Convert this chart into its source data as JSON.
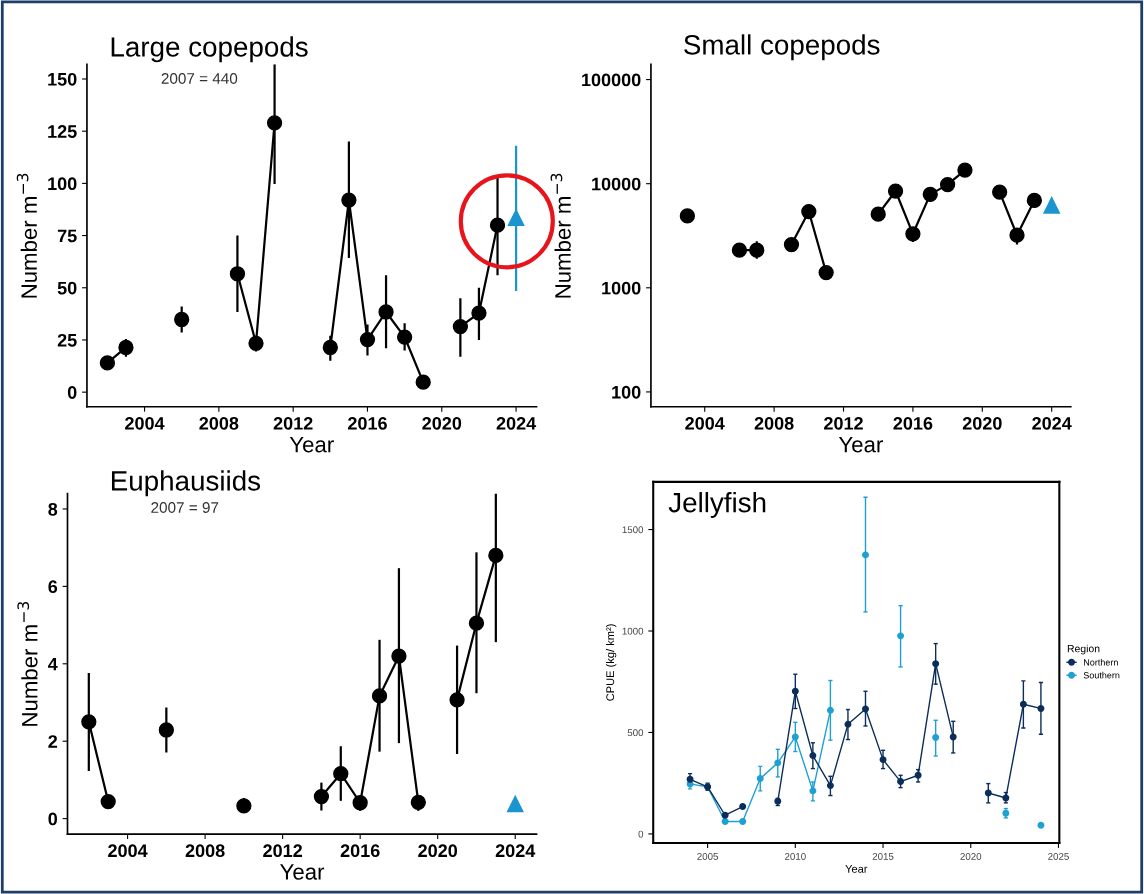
{
  "chart_data": [
    {
      "type": "line",
      "title": "Large copepods",
      "annotations": [
        "2007 = 440"
      ],
      "xlabel": "Year",
      "ylabel": "Number m$^{−3}$",
      "xlim": [
        2000.9,
        2025.1
      ],
      "ylim": [
        -7,
        157
      ],
      "xticks": [
        2004,
        2008,
        2012,
        2016,
        2020,
        2024
      ],
      "yticks": [
        0,
        25,
        50,
        75,
        100,
        125,
        150
      ],
      "marker": "circle",
      "line_style": "solid",
      "x": [
        2002,
        2003,
        2004,
        2005,
        2006,
        2007,
        2008,
        2009,
        2010,
        2011,
        2012,
        2013,
        2014,
        2015,
        2016,
        2017,
        2018,
        2019,
        2020,
        2021,
        2022,
        2023,
        2024
      ],
      "series": [
        {
          "color": "#000000",
          "values": [
            14,
            21.4,
            null,
            null,
            34.8,
            null,
            null,
            56.7,
            23.4,
            129,
            null,
            null,
            21.4,
            92,
            25.2,
            38.4,
            26.4,
            4.8,
            null,
            31.4,
            37.9,
            80,
            null
          ],
          "errors": [
            null,
            [
              17,
              25.5
            ],
            null,
            null,
            [
              28.6,
              41
            ],
            null,
            null,
            [
              38.4,
              75
            ],
            [
              19.5,
              27
            ],
            [
              99.7,
              157
            ],
            null,
            null,
            [
              15,
              27
            ],
            [
              64.3,
              120
            ],
            [
              17.6,
              32.4
            ],
            [
              21,
              56
            ],
            [
              20,
              33
            ],
            null,
            null,
            [
              17,
              45
            ],
            [
              25,
              50
            ],
            [
              56,
              104
            ],
            null
          ]
        },
        {
          "type": "scatter",
          "marker": "triangle",
          "color": "#1b95d0",
          "values": [
            null,
            null,
            null,
            null,
            null,
            null,
            null,
            null,
            null,
            null,
            null,
            null,
            null,
            null,
            null,
            null,
            null,
            null,
            null,
            null,
            null,
            null,
            83.6
          ],
          "errors": [
            null,
            null,
            null,
            null,
            null,
            null,
            null,
            null,
            null,
            null,
            null,
            null,
            null,
            null,
            null,
            null,
            null,
            null,
            null,
            null,
            null,
            null,
            [
              48.4,
              118
            ]
          ]
        }
      ]
    },
    {
      "type": "line",
      "title": "Small copepods",
      "xlabel": "Year",
      "ylabel": "Number m$^{−3}$",
      "log": "y",
      "xlim": [
        2000.9,
        2025.1
      ],
      "ylim": [
        72,
        140000
      ],
      "xticks": [
        2004,
        2008,
        2012,
        2016,
        2020,
        2024
      ],
      "yticks": [
        100,
        1000,
        10000,
        100000
      ],
      "marker": "circle",
      "line_style": "solid",
      "x": [
        2003,
        2004,
        2005,
        2006,
        2007,
        2008,
        2009,
        2010,
        2011,
        2012,
        2013,
        2014,
        2015,
        2016,
        2017,
        2018,
        2019,
        2020,
        2021,
        2022,
        2023,
        2024
      ],
      "series": [
        {
          "color": "#000000",
          "values": [
            4900,
            null,
            null,
            2300,
            2300,
            null,
            2600,
            5400,
            1400,
            null,
            null,
            5100,
            8500,
            3300,
            7900,
            9800,
            13500,
            null,
            8300,
            3200,
            6900,
            null
          ],
          "errors": [
            null,
            null,
            null,
            null,
            [
              1900,
              2800
            ],
            null,
            [
              2300,
              2950
            ],
            null,
            null,
            null,
            null,
            null,
            null,
            [
              2750,
              3700
            ],
            null,
            null,
            null,
            null,
            null,
            [
              2600,
              3700
            ],
            null,
            null
          ]
        },
        {
          "type": "scatter",
          "marker": "triangle",
          "color": "#1b95d0",
          "values": [
            null,
            null,
            null,
            null,
            null,
            null,
            null,
            null,
            null,
            null,
            null,
            null,
            null,
            null,
            null,
            null,
            null,
            null,
            null,
            null,
            null,
            6200
          ]
        }
      ]
    },
    {
      "type": "line",
      "title": "Euphausiids",
      "annotations": [
        "2007 = 97"
      ],
      "xlabel": "Year",
      "ylabel": "Number m$^{−3}$",
      "xlim": [
        2000.9,
        2025.1
      ],
      "ylim": [
        -0.4,
        8.4
      ],
      "xticks": [
        2004,
        2008,
        2012,
        2016,
        2020,
        2024
      ],
      "yticks": [
        0,
        2,
        4,
        6,
        8
      ],
      "marker": "circle",
      "line_style": "solid",
      "x": [
        2002,
        2003,
        2004,
        2005,
        2006,
        2007,
        2008,
        2009,
        2010,
        2011,
        2012,
        2013,
        2014,
        2015,
        2016,
        2017,
        2018,
        2019,
        2020,
        2021,
        2022,
        2023,
        2024
      ],
      "series": [
        {
          "color": "#000000",
          "values": [
            2.5,
            0.44,
            null,
            null,
            2.29,
            null,
            null,
            null,
            0.33,
            null,
            null,
            null,
            0.57,
            1.16,
            0.41,
            3.17,
            4.2,
            0.42,
            null,
            3.07,
            5.05,
            6.8,
            null
          ],
          "errors": [
            [
              1.23,
              3.76
            ],
            null,
            null,
            null,
            [
              1.71,
              2.87
            ],
            null,
            null,
            null,
            [
              0.15,
              0.53
            ],
            null,
            null,
            null,
            [
              0.21,
              0.93
            ],
            [
              0.46,
              1.87
            ],
            [
              0.2,
              0.6
            ],
            [
              1.73,
              4.62
            ],
            [
              1.95,
              6.47
            ],
            [
              0.2,
              0.6
            ],
            null,
            [
              1.67,
              4.47
            ],
            [
              3.24,
              6.88
            ],
            [
              4.56,
              8.4
            ],
            null
          ]
        },
        {
          "type": "scatter",
          "marker": "triangle",
          "color": "#1b95d0",
          "values": [
            null,
            null,
            null,
            null,
            null,
            null,
            null,
            null,
            null,
            null,
            null,
            null,
            null,
            null,
            null,
            null,
            null,
            null,
            null,
            null,
            null,
            null,
            0.38
          ]
        }
      ]
    },
    {
      "type": "line",
      "title": "Jellyfish",
      "xlabel": "Year",
      "ylabel": "CPUE (kg/ km²)",
      "legend_title": "Region",
      "legend": "right",
      "xlim": [
        2001.9,
        2025.05
      ],
      "ylim": [
        -45,
        1735
      ],
      "xticks": [
        2005,
        2010,
        2015,
        2020,
        2025
      ],
      "yticks": [
        0,
        500,
        1000,
        1500
      ],
      "marker": "circle",
      "line_style": "solid",
      "x": [
        2004,
        2005,
        2006,
        2007,
        2008,
        2009,
        2010,
        2011,
        2012,
        2013,
        2014,
        2015,
        2016,
        2017,
        2018,
        2019,
        2020,
        2021,
        2022,
        2023,
        2024
      ],
      "series": [
        {
          "name": "Northern",
          "color": "#0b2d5a",
          "values": [
            269,
            232,
            92,
            135,
            null,
            161,
            703,
            386,
            238,
            540,
            616,
            366,
            258,
            289,
            839,
            478,
            null,
            202,
            177,
            639,
            618
          ],
          "errors": [
            [
              245,
              297
            ],
            [
              215,
              250
            ],
            null,
            null,
            null,
            [
              140,
              175
            ],
            [
              618,
              787
            ],
            [
              322,
              449
            ],
            [
              189,
              284
            ],
            [
              465,
              613
            ],
            [
              532,
              703
            ],
            [
              322,
              412
            ],
            [
              228,
              289
            ],
            [
              256,
              317
            ],
            [
              738,
              938
            ],
            [
              399,
              555
            ],
            null,
            [
              153,
              248
            ],
            [
              153,
              204
            ],
            [
              522,
              754
            ],
            [
              491,
              746
            ]
          ]
        },
        {
          "name": "Southern",
          "color": "#1fa0d2",
          "values": [
            246,
            232,
            61,
            61,
            273,
            350,
            478,
            212,
            609,
            null,
            1375,
            null,
            976,
            null,
            475,
            null,
            null,
            null,
            102,
            null,
            43
          ],
          "errors": [
            [
              222,
              270
            ],
            null,
            null,
            null,
            [
              212,
              333
            ],
            [
              281,
              417
            ],
            [
              406,
              550
            ],
            [
              163,
              256
            ],
            [
              462,
              756
            ],
            null,
            [
              1094,
              1659
            ],
            null,
            [
              823,
              1125
            ],
            null,
            [
              384,
              560
            ],
            null,
            null,
            null,
            [
              79,
              125
            ],
            null,
            null
          ]
        }
      ]
    }
  ]
}
